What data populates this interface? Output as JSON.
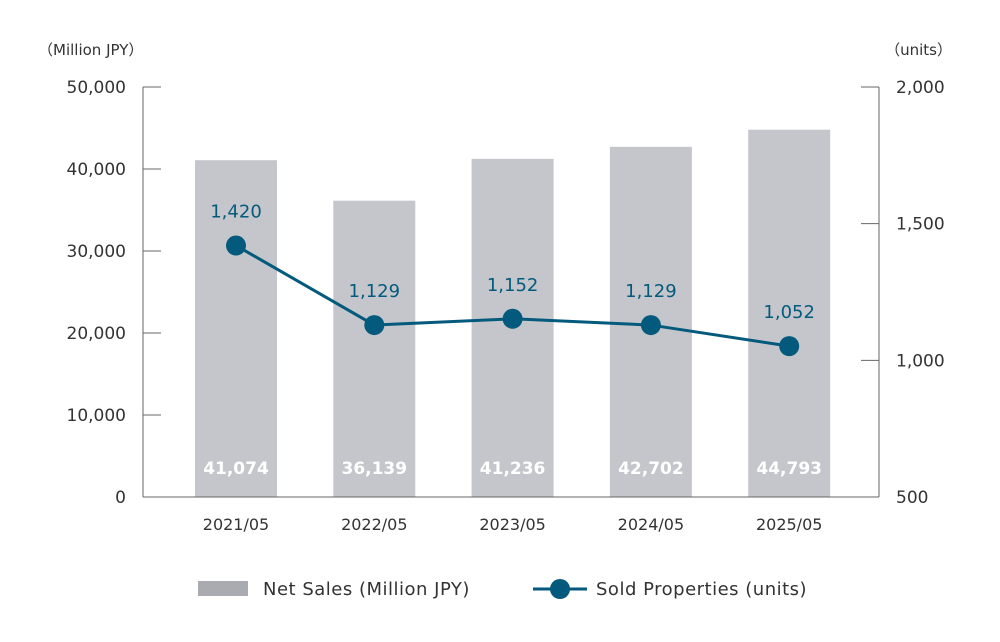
{
  "chart_data": {
    "type": "bar+line",
    "categories": [
      "2021/05",
      "2022/05",
      "2023/05",
      "2024/05",
      "2025/05"
    ],
    "series": [
      {
        "name": "Net Sales (Million JPY)",
        "type": "bar",
        "axis": "left",
        "values": [
          41074,
          36139,
          41236,
          42702,
          44793
        ],
        "labels": [
          "41,074",
          "36,139",
          "41,236",
          "42,702",
          "44,793"
        ],
        "color": "#c4c6cb",
        "legend_color": "#a9abb0"
      },
      {
        "name": "Sold Properties (units)",
        "type": "line",
        "axis": "right",
        "values": [
          1420,
          1129,
          1152,
          1129,
          1052
        ],
        "labels": [
          "1,420",
          "1,129",
          "1,152",
          "1,129",
          "1,052"
        ],
        "color": "#035a7c"
      }
    ],
    "left_axis": {
      "label": "（Million JPY）",
      "range": [
        0,
        50000
      ],
      "ticks": [
        0,
        10000,
        20000,
        30000,
        40000,
        50000
      ],
      "tick_labels": [
        "0",
        "10,000",
        "20,000",
        "30,000",
        "40,000",
        "50,000"
      ]
    },
    "right_axis": {
      "label": "（units）",
      "range": [
        500,
        2000
      ],
      "ticks": [
        500,
        1000,
        1500,
        2000
      ],
      "tick_labels": [
        "500",
        "1,000",
        "1,500",
        "2,000"
      ]
    },
    "legend_position": "bottom",
    "grid": false
  }
}
